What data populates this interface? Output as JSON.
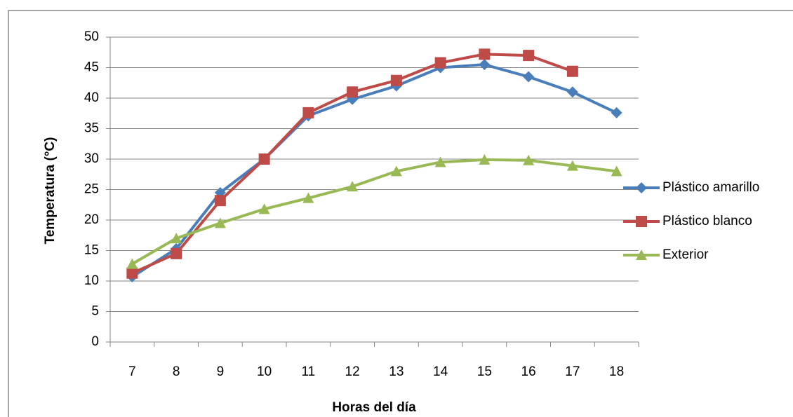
{
  "chart_data": {
    "type": "line",
    "x_label": "Horas del día",
    "y_label": "Temperatura (°C)",
    "categories": [
      "7",
      "8",
      "9",
      "10",
      "11",
      "12",
      "13",
      "14",
      "15",
      "16",
      "17",
      "18"
    ],
    "series": [
      {
        "name": "Plástico amarillo",
        "color": "#4a7ebb",
        "marker": "diamond",
        "values": [
          10.7,
          15.3,
          24.5,
          30,
          37.1,
          39.8,
          42,
          45,
          45.5,
          43.5,
          41,
          37.6
        ]
      },
      {
        "name": "Plástico blanco",
        "color": "#be4b48",
        "marker": "square",
        "values": [
          11.3,
          14.5,
          23.2,
          30,
          37.6,
          41,
          42.9,
          45.8,
          47.2,
          47,
          44.4,
          null
        ]
      },
      {
        "name": "Exterior",
        "color": "#98b954",
        "marker": "triangle",
        "values": [
          12.8,
          17,
          19.5,
          21.8,
          23.6,
          25.5,
          28,
          29.5,
          29.9,
          29.8,
          28.9,
          28
        ]
      }
    ],
    "ylim": [
      0,
      50
    ],
    "yticks": [
      0,
      5,
      10,
      15,
      20,
      25,
      30,
      35,
      40,
      45,
      50
    ],
    "grid": true,
    "legend": "right"
  }
}
